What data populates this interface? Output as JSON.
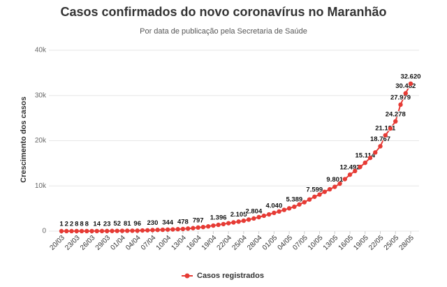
{
  "chart_data": {
    "type": "line",
    "title": "Casos confirmados do novo coronavírus no Maranhão",
    "subtitle": "Por data de publicação pela Secretaria de Saúde",
    "y_label": "Crescimento dos casos",
    "categories": [
      "20/03",
      null,
      null,
      "23/03",
      null,
      null,
      "26/03",
      null,
      null,
      "29/03",
      null,
      null,
      "01/04",
      null,
      null,
      "04/04",
      null,
      null,
      "07/04",
      null,
      null,
      "10/04",
      null,
      null,
      "13/04",
      null,
      null,
      "16/04",
      null,
      null,
      "19/04",
      null,
      null,
      "22/04",
      null,
      null,
      "25/04",
      null,
      null,
      "28/04",
      null,
      null,
      "01/05",
      null,
      null,
      "04/05",
      null,
      null,
      "07/05",
      null,
      null,
      "10/05",
      null,
      null,
      "13/05",
      null,
      null,
      "16/05",
      null,
      null,
      "19/05",
      null,
      null,
      "22/05",
      null,
      null,
      "25/05",
      null,
      null,
      "28/05"
    ],
    "series": [
      {
        "name": "Casos registrados",
        "color": "#e63b35",
        "values": [
          1,
          2,
          2,
          8,
          8,
          8,
          10,
          14,
          19,
          23,
          38,
          52,
          66,
          81,
          90,
          96,
          150,
          190,
          230,
          270,
          300,
          344,
          380,
          430,
          478,
          560,
          660,
          797,
          900,
          1050,
          1230,
          1396,
          1560,
          1750,
          1930,
          2105,
          2300,
          2550,
          2804,
          3100,
          3400,
          3700,
          4040,
          4350,
          4700,
          5050,
          5389,
          5900,
          6400,
          7000,
          7599,
          8100,
          8700,
          9250,
          9801,
          10500,
          11500,
          12492,
          13300,
          14200,
          15114,
          16200,
          17400,
          18767,
          21191,
          22700,
          24278,
          27979,
          30482,
          32620
        ],
        "value_labels": [
          "1",
          "2",
          "2",
          "8",
          "8",
          "8",
          null,
          "14",
          null,
          "23",
          null,
          "52",
          null,
          "81",
          null,
          "96",
          null,
          null,
          "230",
          null,
          null,
          "344",
          null,
          null,
          "478",
          null,
          null,
          "797",
          null,
          null,
          null,
          "1.396",
          null,
          null,
          null,
          "2.105",
          null,
          null,
          "2.804",
          null,
          null,
          null,
          "4.040",
          null,
          null,
          null,
          "5.389",
          null,
          null,
          null,
          "7.599",
          null,
          null,
          null,
          "9.801",
          null,
          null,
          "12.492",
          null,
          null,
          "15.114",
          null,
          null,
          "18.767",
          "21.191",
          null,
          "24.278",
          "27.979",
          "30.482",
          "32.620"
        ]
      }
    ],
    "ylim": [
      0,
      40000
    ],
    "yticks": [
      0,
      {
        "value": 10000,
        "label": "10k"
      },
      {
        "value": 20000,
        "label": "20k"
      },
      {
        "value": 30000,
        "label": "30k"
      },
      {
        "value": 40000,
        "label": "40k"
      }
    ],
    "grid": true
  }
}
